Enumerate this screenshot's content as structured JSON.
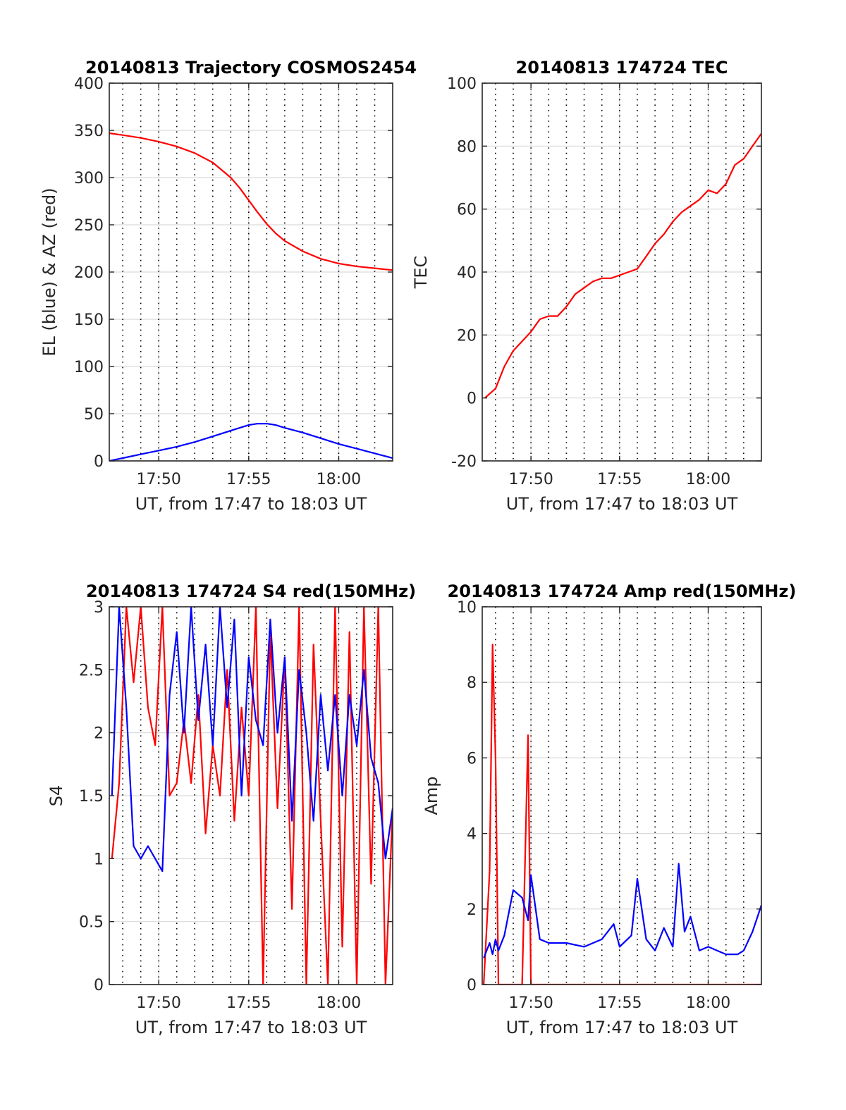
{
  "colors": {
    "red": "#ff0000",
    "blue": "#0000ff",
    "axis": "#262626",
    "grid": "#d9d9d9"
  },
  "chart_data": [
    {
      "id": "trajectory",
      "type": "line",
      "title": "20140813 Trajectory COSMOS2454",
      "xlabel": "UT, from 17:47 to 18:03 UT",
      "ylabel": "EL (blue) & AZ (red)",
      "xlim": [
        "17:47:15",
        "18:03:00"
      ],
      "ylim": [
        0,
        400
      ],
      "yticks": [
        0,
        50,
        100,
        150,
        200,
        250,
        300,
        350,
        400
      ],
      "xticks": [
        "17:50",
        "17:55",
        "18:00"
      ],
      "grid": true,
      "x": [
        "17:47:15",
        "17:48",
        "17:49",
        "17:50",
        "17:51",
        "17:52",
        "17:53",
        "17:54",
        "17:54:30",
        "17:55",
        "17:55:30",
        "17:56",
        "17:56:30",
        "17:57",
        "17:58",
        "17:59",
        "18:00",
        "18:01",
        "18:02",
        "18:03"
      ],
      "series": [
        {
          "color": "red",
          "values": [
            347,
            345,
            342,
            338,
            333,
            326,
            316,
            300,
            289,
            276,
            263,
            251,
            241,
            233,
            222,
            214,
            209,
            206,
            204,
            202
          ]
        },
        {
          "color": "blue",
          "values": [
            0,
            3,
            7,
            11,
            15,
            20,
            26,
            32,
            35,
            38,
            39.5,
            39.5,
            38,
            35,
            30,
            24,
            18,
            13,
            8,
            3
          ]
        }
      ]
    },
    {
      "id": "tec",
      "type": "line",
      "title": "20140813 174724 TEC",
      "xlabel": "UT, from 17:47 to 18:03 UT",
      "ylabel": "TEC",
      "xlim": [
        "17:47:15",
        "18:03:00"
      ],
      "ylim": [
        -20,
        100
      ],
      "yticks": [
        -20,
        0,
        20,
        40,
        60,
        80,
        100
      ],
      "xticks": [
        "17:50",
        "17:55",
        "18:00"
      ],
      "grid": true,
      "x": [
        "17:47:24",
        "17:48",
        "17:48:30",
        "17:49",
        "17:49:30",
        "17:50",
        "17:50:30",
        "17:51",
        "17:51:30",
        "17:52",
        "17:52:30",
        "17:53",
        "17:53:30",
        "17:54",
        "17:54:30",
        "17:55",
        "17:55:30",
        "17:56",
        "17:56:30",
        "17:57",
        "17:57:30",
        "17:58",
        "17:58:30",
        "17:59",
        "17:59:30",
        "18:00",
        "18:00:30",
        "18:01",
        "18:01:30",
        "18:02",
        "18:02:30",
        "18:03"
      ],
      "series": [
        {
          "color": "red",
          "values": [
            0,
            3,
            10,
            15,
            18,
            21,
            25,
            26,
            26,
            29,
            33,
            35,
            37,
            38,
            38,
            39,
            40,
            41,
            45,
            49,
            52,
            56,
            59,
            61,
            63,
            66,
            65,
            68,
            74,
            76,
            80,
            84
          ]
        }
      ]
    },
    {
      "id": "s4",
      "type": "line",
      "title": "20140813 174724 S4 red(150MHz)",
      "xlabel": "UT, from 17:47 to 18:03 UT",
      "ylabel": "S4",
      "xlim": [
        "17:47:15",
        "18:03:00"
      ],
      "ylim": [
        0,
        3
      ],
      "yticks": [
        0,
        0.5,
        1,
        1.5,
        2,
        2.5,
        3
      ],
      "xticks": [
        "17:50",
        "17:55",
        "18:00"
      ],
      "grid": true,
      "x": [
        "17:47:24",
        "17:47:48",
        "17:48:12",
        "17:48:36",
        "17:49",
        "17:49:24",
        "17:49:48",
        "17:50:12",
        "17:50:36",
        "17:51",
        "17:51:24",
        "17:51:48",
        "17:52:12",
        "17:52:36",
        "17:53",
        "17:53:24",
        "17:53:48",
        "17:54:12",
        "17:54:36",
        "17:55",
        "17:55:24",
        "17:55:48",
        "17:56:12",
        "17:56:36",
        "17:57",
        "17:57:24",
        "17:57:48",
        "17:58:12",
        "17:58:36",
        "17:59",
        "17:59:24",
        "17:59:48",
        "18:00:12",
        "18:00:36",
        "18:01",
        "18:01:24",
        "18:01:48",
        "18:02:12",
        "18:02:36",
        "18:03"
      ],
      "series": [
        {
          "color": "red",
          "values": [
            1.0,
            1.6,
            3.0,
            2.4,
            3.0,
            2.2,
            1.9,
            3.0,
            1.5,
            1.6,
            2.1,
            1.6,
            2.3,
            1.2,
            1.9,
            1.5,
            2.5,
            1.3,
            2.2,
            1.5,
            3.0,
            0,
            2.8,
            1.4,
            2.6,
            0.6,
            3.0,
            0,
            2.7,
            1.3,
            0,
            3.0,
            0.3,
            2.8,
            0,
            3.0,
            0.8,
            3.0,
            0,
            1.4
          ]
        },
        {
          "color": "blue",
          "values": [
            1.5,
            3.0,
            2.2,
            1.1,
            1.0,
            1.1,
            1.0,
            0.9,
            2.3,
            2.8,
            2.0,
            3.0,
            2.1,
            2.7,
            1.9,
            3.0,
            2.2,
            2.9,
            1.5,
            2.6,
            2.1,
            1.9,
            2.9,
            2.0,
            2.6,
            1.3,
            2.5,
            2.0,
            1.3,
            2.3,
            1.7,
            2.3,
            1.5,
            2.3,
            1.9,
            2.5,
            1.8,
            1.6,
            1.0,
            1.4
          ]
        }
      ]
    },
    {
      "id": "amp",
      "type": "line",
      "title": "20140813 174724 Amp red(150MHz)",
      "xlabel": "UT, from 17:47 to 18:03 UT",
      "ylabel": "Amp",
      "xlim": [
        "17:47:15",
        "18:03:00"
      ],
      "ylim": [
        0,
        10
      ],
      "yticks": [
        0,
        2,
        4,
        6,
        8,
        10
      ],
      "xticks": [
        "17:50",
        "17:55",
        "18:00"
      ],
      "grid": true,
      "x": [
        "17:47:20",
        "17:47:40",
        "17:47:50",
        "17:48",
        "17:48:10",
        "17:48:30",
        "17:49",
        "17:49:30",
        "17:49:50",
        "17:50",
        "17:50:30",
        "17:51",
        "17:52",
        "17:53",
        "17:54",
        "17:54:40",
        "17:55",
        "17:55:40",
        "17:56",
        "17:56:30",
        "17:57",
        "17:57:30",
        "17:58",
        "17:58:20",
        "17:58:40",
        "17:59",
        "17:59:30",
        "18:00",
        "18:01",
        "18:01:40",
        "18:02",
        "18:02:30",
        "18:03"
      ],
      "series": [
        {
          "color": "red",
          "values": [
            0,
            3,
            9,
            6,
            0,
            0,
            0,
            0,
            6.6,
            0,
            0,
            0,
            0,
            0,
            0,
            0,
            0,
            0,
            0,
            0,
            0,
            0,
            0,
            0,
            0,
            0,
            0,
            0,
            0,
            0,
            0,
            0,
            0
          ]
        },
        {
          "color": "blue",
          "values": [
            0.7,
            1.1,
            0.8,
            1.2,
            0.9,
            1.3,
            2.5,
            2.3,
            1.7,
            2.9,
            1.2,
            1.1,
            1.1,
            1.0,
            1.2,
            1.6,
            1.0,
            1.3,
            2.8,
            1.2,
            0.9,
            1.5,
            1.0,
            3.2,
            1.4,
            1.8,
            0.9,
            1.0,
            0.8,
            0.8,
            0.9,
            1.4,
            2.1
          ]
        }
      ]
    }
  ]
}
